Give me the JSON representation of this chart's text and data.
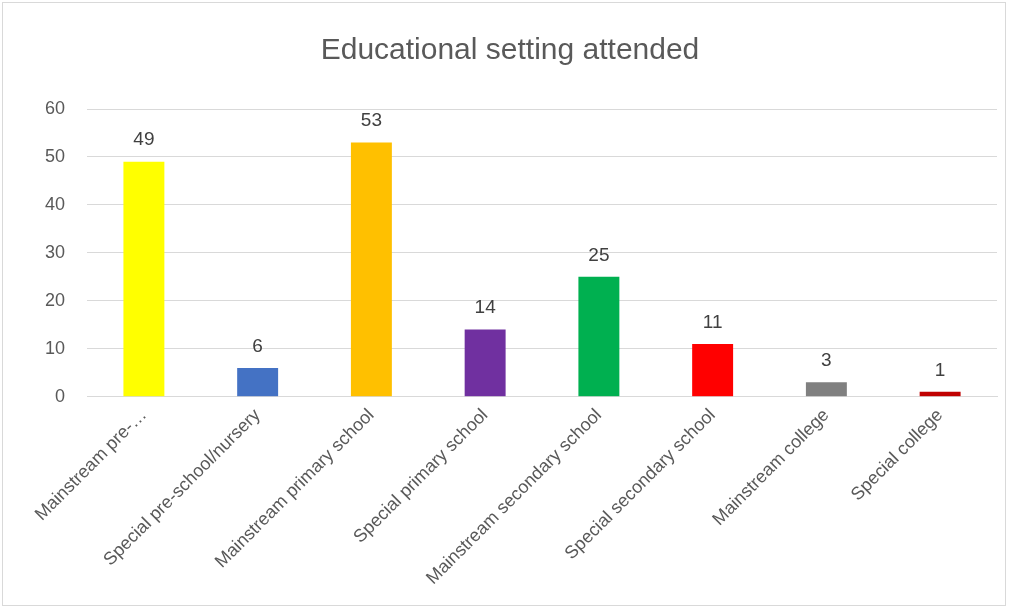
{
  "chart_data": {
    "type": "bar",
    "title": "Educational setting attended",
    "categories": [
      "Mainstream pre-…",
      "Special pre-school/nursery",
      "Mainstream primary school",
      "Special primary school",
      "Mainstream secondary school",
      "Special secondary school",
      "Mainstream college",
      "Special college"
    ],
    "values": [
      49,
      6,
      53,
      14,
      25,
      11,
      3,
      1
    ],
    "colors": [
      "#ffff00",
      "#4472c4",
      "#ffc000",
      "#7030a0",
      "#00b050",
      "#ff0000",
      "#808080",
      "#c00000"
    ],
    "ylim": [
      0,
      60
    ],
    "yticks": [
      0,
      10,
      20,
      30,
      40,
      50,
      60
    ],
    "grid": "y",
    "data_labels": true
  }
}
